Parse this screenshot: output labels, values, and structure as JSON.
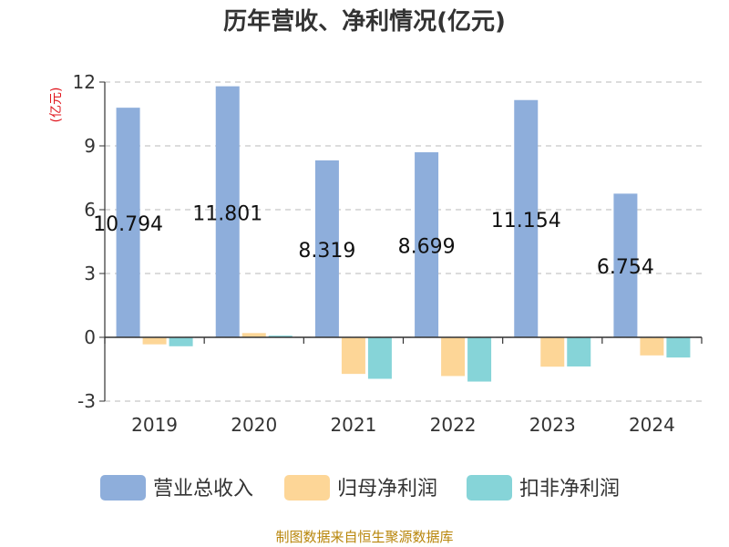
{
  "chart_data": {
    "type": "bar",
    "title": "历年营收、净利情况(亿元)",
    "ylabel": "(亿元)",
    "categories": [
      "2019",
      "2020",
      "2021",
      "2022",
      "2023",
      "2024"
    ],
    "ylim": [
      -3,
      12
    ],
    "yticks": [
      12,
      9,
      6,
      3,
      0,
      -3
    ],
    "series": [
      {
        "name": "营业总收入",
        "color": "#8eaedb",
        "values": [
          10.794,
          11.801,
          8.319,
          8.699,
          11.154,
          6.754
        ],
        "labels": [
          "10.794",
          "11.801",
          "8.319",
          "8.699",
          "11.154",
          "6.754"
        ]
      },
      {
        "name": "归母净利润",
        "color": "#fdd697",
        "values": [
          -0.33,
          0.2,
          -1.72,
          -1.82,
          -1.38,
          -0.85
        ]
      },
      {
        "name": "扣非净利润",
        "color": "#86d4d8",
        "values": [
          -0.42,
          0.08,
          -1.95,
          -2.08,
          -1.37,
          -0.95
        ]
      }
    ],
    "grid": true,
    "legend_position": "bottom"
  },
  "source_text": "制图数据来自恒生聚源数据库"
}
